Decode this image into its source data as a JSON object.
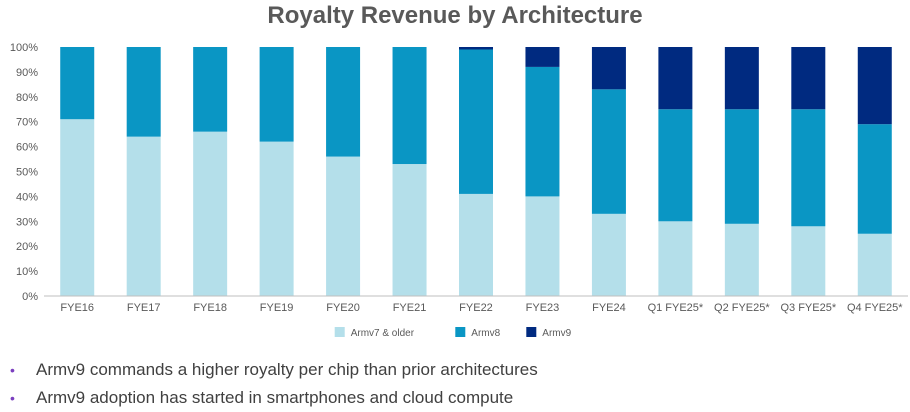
{
  "chart_data": {
    "type": "bar",
    "stacked": true,
    "normalized": true,
    "title": "Royalty Revenue by Architecture",
    "categories": [
      "FYE16",
      "FYE17",
      "FYE18",
      "FYE19",
      "FYE20",
      "FYE21",
      "FYE22",
      "FYE23",
      "FYE24",
      "Q1 FYE25*",
      "Q2 FYE25*",
      "Q3 FYE25*",
      "Q4 FYE25*"
    ],
    "series": [
      {
        "name": "Armv7 & older",
        "color": "#b4dfea",
        "values": [
          71,
          64,
          66,
          62,
          56,
          53,
          41,
          40,
          33,
          30,
          29,
          28,
          25
        ]
      },
      {
        "name": "Armv8",
        "color": "#0a96c4",
        "values": [
          29,
          36,
          34,
          38,
          44,
          47,
          58,
          52,
          50,
          45,
          46,
          47,
          44
        ]
      },
      {
        "name": "Armv9",
        "color": "#002a80",
        "values": [
          0,
          0,
          0,
          0,
          0,
          0,
          1,
          8,
          17,
          25,
          25,
          25,
          31
        ]
      }
    ],
    "ylim": [
      0,
      100
    ],
    "yticks": [
      "0%",
      "10%",
      "20%",
      "30%",
      "40%",
      "50%",
      "60%",
      "70%",
      "80%",
      "90%",
      "100%"
    ],
    "grid": false,
    "legend_position": "bottom"
  },
  "bullets": [
    "Armv9 commands a higher royalty per chip than prior architectures",
    "Armv9 adoption has started in smartphones and cloud compute"
  ],
  "bullet_marker": "•"
}
